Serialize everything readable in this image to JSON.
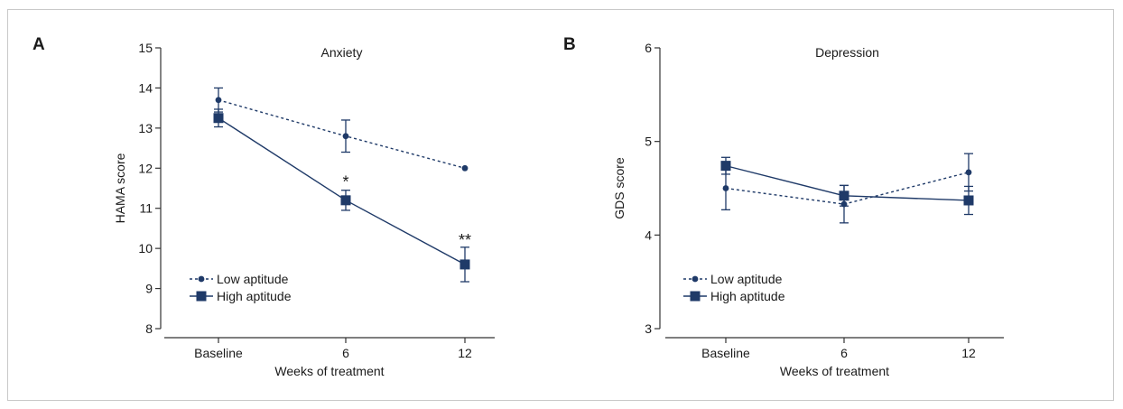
{
  "chart_data": [
    {
      "panel_label": "A",
      "type": "line",
      "title": "Anxiety",
      "xlabel": "Weeks of treatment",
      "ylabel": "HAMA score",
      "categories": [
        "Baseline",
        "6",
        "12"
      ],
      "ylim": [
        8,
        15
      ],
      "yticks": [
        8,
        9,
        10,
        11,
        12,
        13,
        14,
        15
      ],
      "grid": false,
      "legend_position": "bottom-left",
      "series": [
        {
          "name": "Low aptitude",
          "marker": "circle",
          "line_style": "dotted",
          "values": [
            13.7,
            12.8,
            12.0
          ],
          "error": [
            0.3,
            0.4,
            0.0
          ]
        },
        {
          "name": "High aptitude",
          "marker": "square",
          "line_style": "solid",
          "values": [
            13.25,
            11.2,
            9.6
          ],
          "error": [
            0.22,
            0.25,
            0.43
          ]
        }
      ],
      "annotations": [
        {
          "text": "*",
          "category": "6",
          "y": 11.7
        },
        {
          "text": "**",
          "category": "12",
          "y": 10.25
        }
      ]
    },
    {
      "panel_label": "B",
      "type": "line",
      "title": "Depression",
      "xlabel": "Weeks of treatment",
      "ylabel": "GDS score",
      "categories": [
        "Baseline",
        "6",
        "12"
      ],
      "ylim": [
        3,
        6
      ],
      "yticks": [
        3,
        4,
        5,
        6
      ],
      "grid": false,
      "legend_position": "bottom-left",
      "series": [
        {
          "name": "Low aptitude",
          "marker": "circle",
          "line_style": "dotted",
          "values": [
            4.5,
            4.33,
            4.67
          ],
          "error": [
            0.23,
            0.2,
            0.2
          ]
        },
        {
          "name": "High aptitude",
          "marker": "square",
          "line_style": "solid",
          "values": [
            4.74,
            4.42,
            4.37
          ],
          "error": [
            0.09,
            0.11,
            0.15
          ]
        }
      ],
      "annotations": []
    }
  ],
  "style": {
    "series_color": "#1f3a68",
    "axis_color": "#333333",
    "frame_color": "#c9c9c9"
  }
}
